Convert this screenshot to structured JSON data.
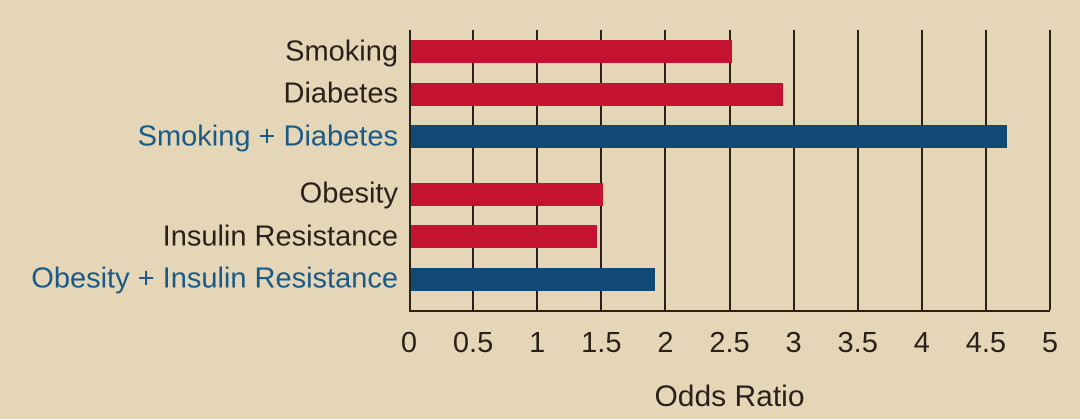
{
  "chart_data": {
    "type": "bar",
    "orientation": "horizontal",
    "title": "",
    "xlabel": "Odds Ratio",
    "ylabel": "",
    "xlim": [
      0,
      5
    ],
    "grid": true,
    "legend": "none",
    "xticks": [
      {
        "value": 0,
        "label": "0"
      },
      {
        "value": 0.5,
        "label": "0.5"
      },
      {
        "value": 1,
        "label": "1"
      },
      {
        "value": 1.5,
        "label": "1.5"
      },
      {
        "value": 2,
        "label": "2"
      },
      {
        "value": 2.5,
        "label": "2.5"
      },
      {
        "value": 3,
        "label": "3"
      },
      {
        "value": 3.5,
        "label": "3.5"
      },
      {
        "value": 4,
        "label": "4"
      },
      {
        "value": 4.5,
        "label": "4.5"
      },
      {
        "value": 5,
        "label": "5"
      }
    ],
    "groups": [
      {
        "items": [
          {
            "label": "Smoking",
            "value": 2.5,
            "style": "single"
          },
          {
            "label": "Diabetes",
            "value": 2.9,
            "style": "single"
          },
          {
            "label": "Smoking + Diabetes",
            "value": 4.65,
            "style": "combined"
          }
        ]
      },
      {
        "items": [
          {
            "label": "Obesity",
            "value": 1.5,
            "style": "single"
          },
          {
            "label": "Insulin Resistance",
            "value": 1.45,
            "style": "single"
          },
          {
            "label": "Obesity + Insulin Resistance",
            "value": 1.9,
            "style": "combined"
          }
        ]
      }
    ],
    "colors": {
      "background": "#e4d6b6",
      "single_bar": "#c41231",
      "combined_bar": "#104a74",
      "single_label": "#2b211b",
      "combined_label": "#1a5a87",
      "axis_text": "#2b211b",
      "gridline": "#2a2119"
    }
  }
}
